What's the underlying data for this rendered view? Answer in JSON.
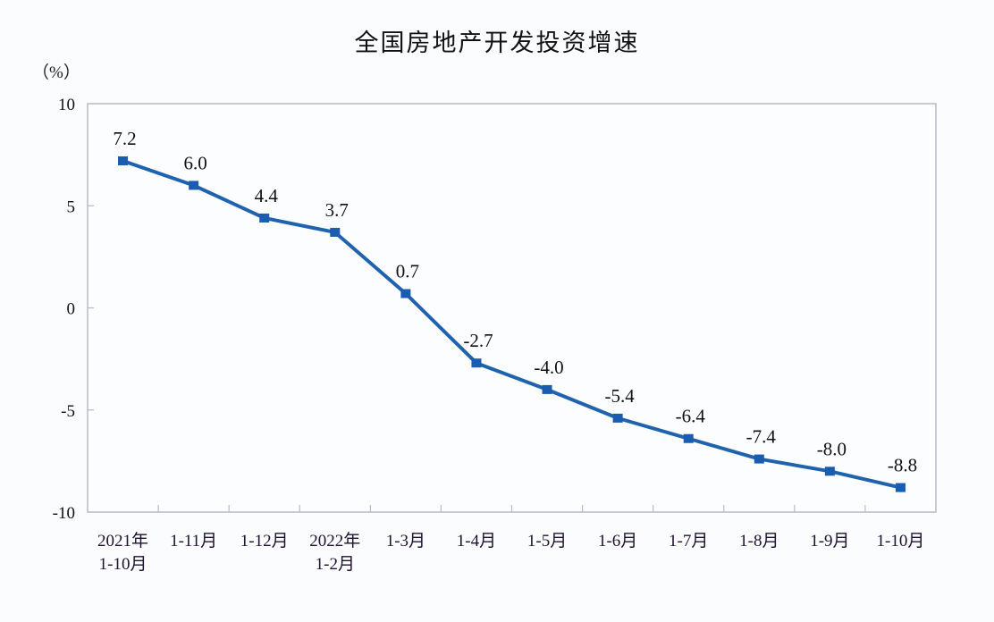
{
  "chart": {
    "title": "全国房地产开发投资增速",
    "unit_label": "（%）"
  },
  "colors": {
    "line": "#1f62ad",
    "marker": "#1a5cb0",
    "frame": "#b9b8c8",
    "background": "#fbfcfe"
  },
  "chart_data": {
    "type": "line",
    "title": "全国房地产开发投资增速",
    "xlabel": "",
    "ylabel": "（%）",
    "ylim": [
      -10,
      10
    ],
    "yticks": [
      10,
      5,
      0,
      -5,
      -10
    ],
    "grid": false,
    "legend": null,
    "categories": [
      [
        "2021年",
        "1-10月"
      ],
      [
        "1-11月"
      ],
      [
        "1-12月"
      ],
      [
        "2022年",
        "1-2月"
      ],
      [
        "1-3月"
      ],
      [
        "1-4月"
      ],
      [
        "1-5月"
      ],
      [
        "1-6月"
      ],
      [
        "1-7月"
      ],
      [
        "1-8月"
      ],
      [
        "1-9月"
      ],
      [
        "1-10月"
      ]
    ],
    "series": [
      {
        "name": "全国房地产开发投资增速",
        "values": [
          7.2,
          6.0,
          4.4,
          3.7,
          0.7,
          -2.7,
          -4.0,
          -5.4,
          -6.4,
          -7.4,
          -8.0,
          -8.8
        ],
        "labels": [
          "7.2",
          "6.0",
          "4.4",
          "3.7",
          "0.7",
          "-2.7",
          "-4.0",
          "-5.4",
          "-6.4",
          "-7.4",
          "-8.0",
          "-8.8"
        ]
      }
    ]
  }
}
